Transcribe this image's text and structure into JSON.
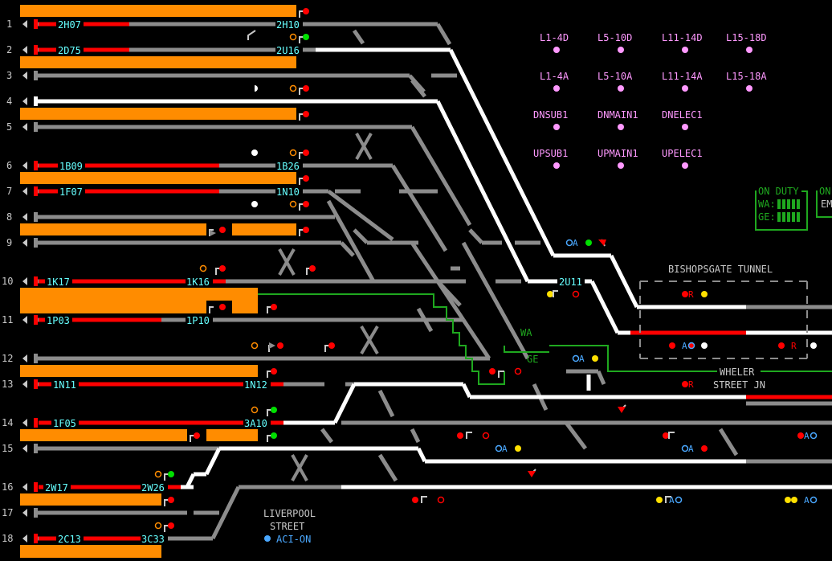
{
  "row_numbers": [
    "1",
    "2",
    "3",
    "4",
    "5",
    "6",
    "7",
    "8",
    "9",
    "10",
    "11",
    "12",
    "13",
    "14",
    "15",
    "16",
    "17",
    "18"
  ],
  "headcodes": {
    "r1_left": "2H07",
    "r1_right": "2H10",
    "r2_left": "2D75",
    "r2_right": "2U16",
    "r6_left": "1B09",
    "r6_right": "1B26",
    "r7_left": "1F07",
    "r7_right": "1N10",
    "r10_left": "1K17",
    "r10_right": "1K16",
    "r11_left": "1P03",
    "r11_right": "1P10",
    "r13_left": "1N11",
    "r13_right": "1N12",
    "r14_left": "1F05",
    "r14_right": "3A10",
    "r16_left": "2W17",
    "r16_right": "2W26",
    "r18_left": "2C13",
    "r18_right": "3C33",
    "mid": "2U11"
  },
  "routes": [
    [
      "L1-4D",
      "L5-10D",
      "L11-14D",
      "L15-18D"
    ],
    [
      "L1-4A",
      "L5-10A",
      "L11-14A",
      "L15-18A"
    ],
    [
      "DNSUB1",
      "DNMAIN1",
      "DNELEC1"
    ],
    [
      "UPSUB1",
      "UPMAIN1",
      "UPELEC1"
    ]
  ],
  "on_duty": {
    "title": "ON DUTY",
    "row1": "WA:",
    "row2": "GE:",
    "partial_title": "ON",
    "partial_row": "EM"
  },
  "labels": {
    "tunnel": "BISHOPSGATE TUNNEL",
    "wheeler_1": "WHELER",
    "wheeler_2": "STREET JN",
    "wa": "WA",
    "ge": "GE",
    "station_1": "LIVERPOOL",
    "station_2": "STREET",
    "aci": "ACI-ON",
    "marker_x": "X",
    "route_a": "A",
    "route_r": "R"
  },
  "colors": {
    "track_grey": "#8c8c8c",
    "track_white": "#ffffff",
    "track_red": "#ff0000",
    "platform": "#ff8c00",
    "green_line": "#1fa81f",
    "headcode": "#66ffff",
    "route_text": "#ff99ff"
  }
}
